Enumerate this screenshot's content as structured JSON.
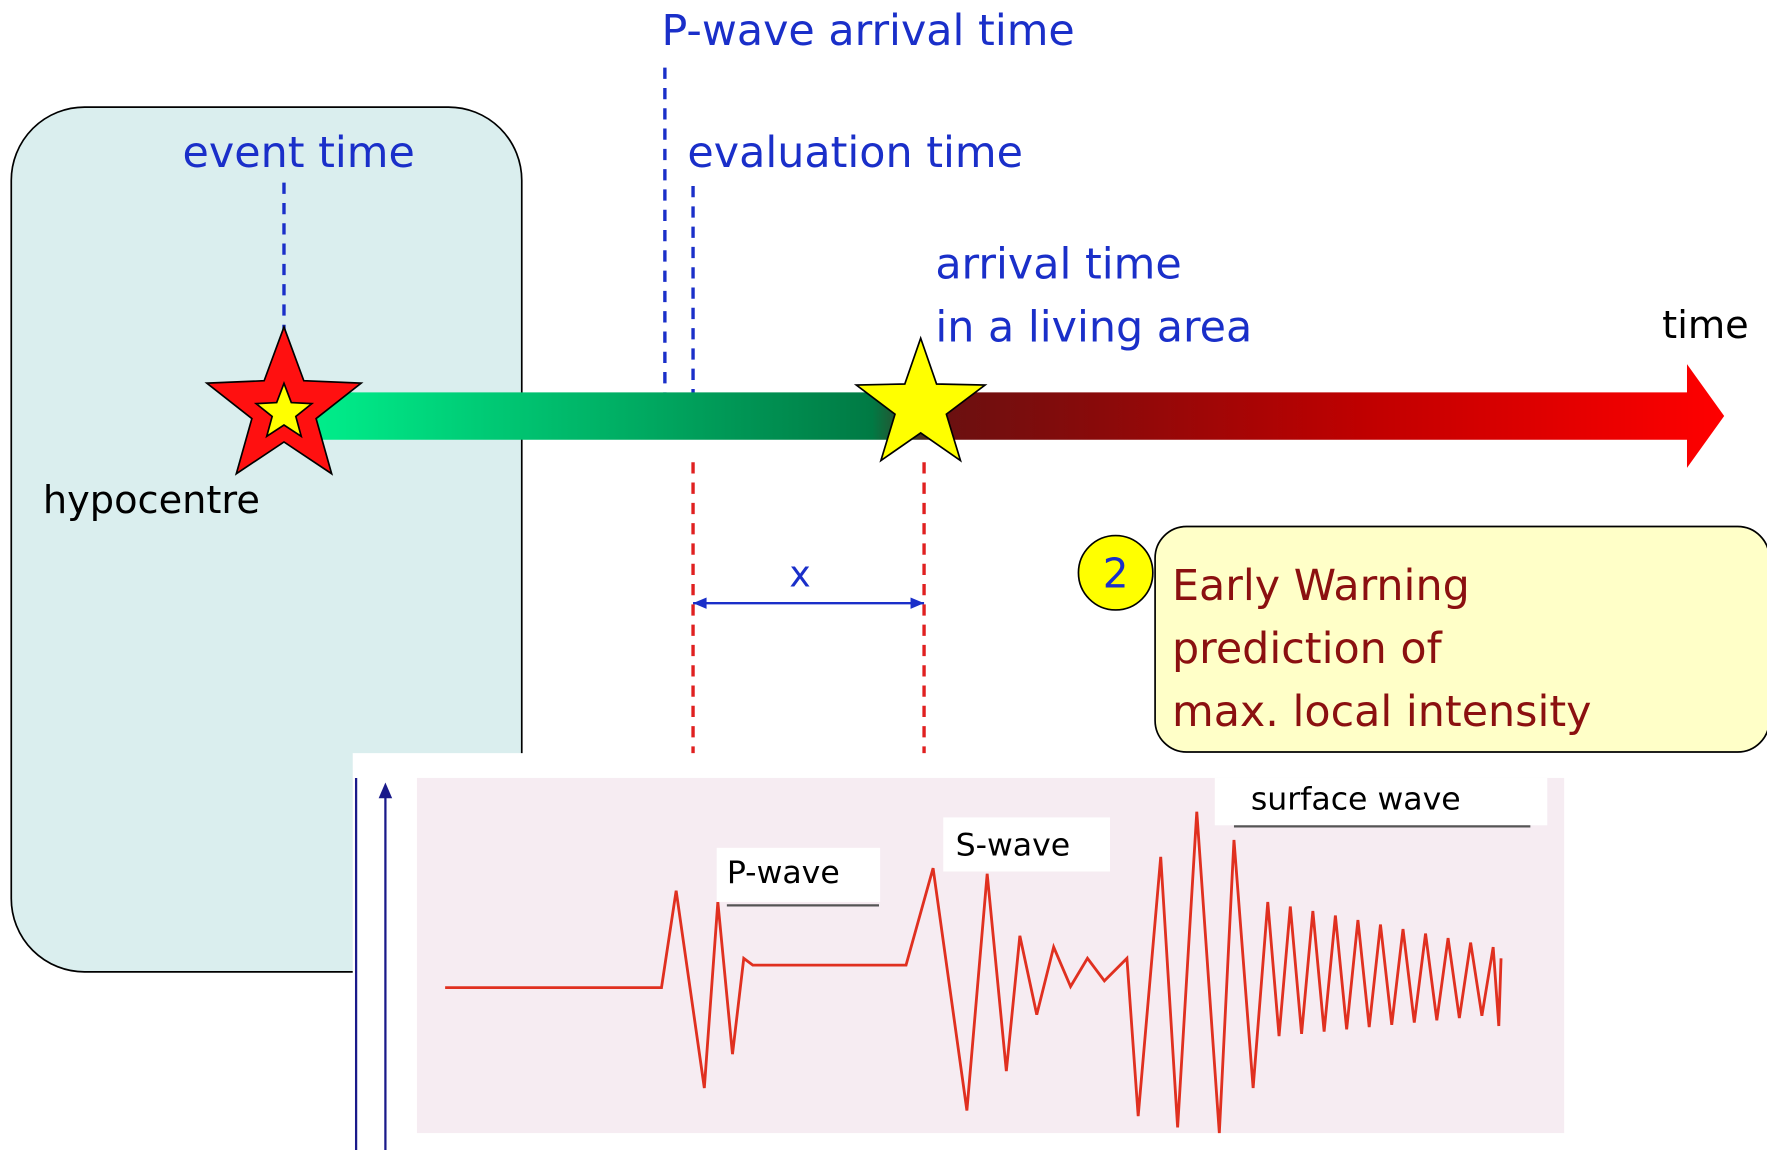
{
  "labels": {
    "p_wave_arrival": "P-wave arrival time",
    "event_time": "event time",
    "evaluation_time": "evaluation time",
    "arrival_time": [
      "arrival time",
      "in a living area"
    ],
    "time": "time",
    "hypocentre": "hypocentre",
    "x": "x"
  },
  "callout": {
    "number": "2",
    "title": "Early Warning",
    "lines": [
      "prediction of",
      "max. local intensity"
    ]
  },
  "seismogram": {
    "p_wave": "P-wave",
    "s_wave": "S-wave",
    "surface_wave": "surface wave"
  }
}
